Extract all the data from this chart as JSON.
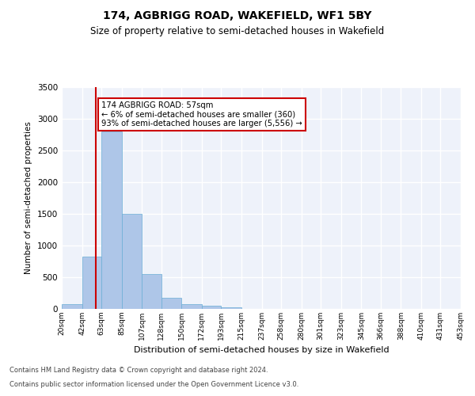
{
  "title": "174, AGBRIGG ROAD, WAKEFIELD, WF1 5BY",
  "subtitle": "Size of property relative to semi-detached houses in Wakefield",
  "xlabel": "Distribution of semi-detached houses by size in Wakefield",
  "ylabel": "Number of semi-detached properties",
  "bin_labels": [
    "20sqm",
    "42sqm",
    "63sqm",
    "85sqm",
    "107sqm",
    "128sqm",
    "150sqm",
    "172sqm",
    "193sqm",
    "215sqm",
    "237sqm",
    "258sqm",
    "280sqm",
    "301sqm",
    "323sqm",
    "345sqm",
    "366sqm",
    "388sqm",
    "410sqm",
    "431sqm",
    "453sqm"
  ],
  "bin_edges": [
    20,
    42,
    63,
    85,
    107,
    128,
    150,
    172,
    193,
    215,
    237,
    258,
    280,
    301,
    323,
    345,
    366,
    388,
    410,
    431,
    453
  ],
  "bar_heights": [
    80,
    830,
    2800,
    1500,
    550,
    175,
    80,
    50,
    20,
    5,
    3,
    2,
    1,
    0,
    0,
    0,
    0,
    0,
    0,
    0
  ],
  "bar_color": "#aec6e8",
  "bar_edgecolor": "#6aaed6",
  "property_size": 57,
  "pct_smaller": 6,
  "n_smaller": 360,
  "pct_larger": 93,
  "n_larger": 5556,
  "vline_color": "#cc0000",
  "annotation_box_edgecolor": "#cc0000",
  "ylim": [
    0,
    3500
  ],
  "yticks": [
    0,
    500,
    1000,
    1500,
    2000,
    2500,
    3000,
    3500
  ],
  "background_color": "#eef2fa",
  "grid_color": "#ffffff",
  "footer_line1": "Contains HM Land Registry data © Crown copyright and database right 2024.",
  "footer_line2": "Contains public sector information licensed under the Open Government Licence v3.0."
}
